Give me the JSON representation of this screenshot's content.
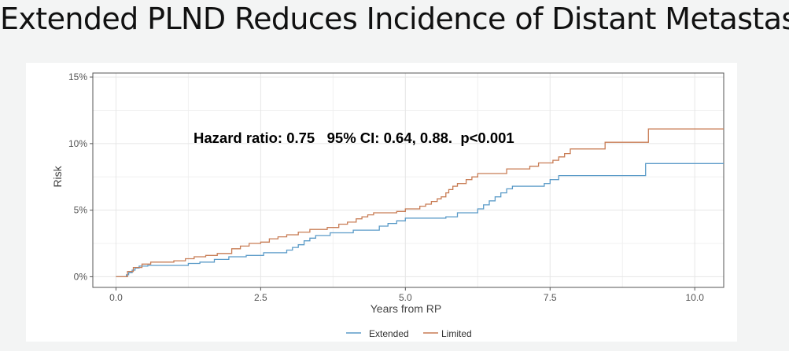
{
  "slide": {
    "title": "Extended PLND Reduces Incidence of Distant Metastasis"
  },
  "chart_data": {
    "type": "line",
    "step": true,
    "xlabel": "Years from RP",
    "ylabel": "Risk",
    "xlim": [
      -0.4,
      10.5
    ],
    "ylim": [
      -0.8,
      15.3
    ],
    "x_ticks": [
      0,
      2.5,
      5,
      7.5,
      10
    ],
    "x_tick_labels": [
      "0.0",
      "2.5",
      "5.0",
      "7.5",
      "10.0"
    ],
    "y_ticks": [
      0,
      5,
      10,
      15
    ],
    "y_tick_labels": [
      "0%",
      "5%",
      "10%",
      "15%"
    ],
    "grid": true,
    "legend_position": "bottom",
    "annotation": "Hazard ratio: 0.75   95% CI: 0.64, 0.88.  p<0.001",
    "series": [
      {
        "name": "Extended",
        "color": "#5b9bc8",
        "points": [
          [
            0,
            0
          ],
          [
            0.18,
            0.15
          ],
          [
            0.22,
            0.3
          ],
          [
            0.28,
            0.5
          ],
          [
            0.33,
            0.65
          ],
          [
            0.4,
            0.8
          ],
          [
            0.55,
            0.85
          ],
          [
            1.25,
            1.0
          ],
          [
            1.45,
            1.1
          ],
          [
            1.7,
            1.3
          ],
          [
            1.95,
            1.5
          ],
          [
            2.25,
            1.6
          ],
          [
            2.55,
            1.8
          ],
          [
            2.95,
            2.0
          ],
          [
            3.05,
            2.2
          ],
          [
            3.15,
            2.4
          ],
          [
            3.25,
            2.7
          ],
          [
            3.35,
            2.9
          ],
          [
            3.45,
            3.1
          ],
          [
            3.7,
            3.3
          ],
          [
            4.1,
            3.5
          ],
          [
            4.55,
            3.8
          ],
          [
            4.7,
            4.0
          ],
          [
            4.85,
            4.2
          ],
          [
            5.0,
            4.4
          ],
          [
            5.7,
            4.5
          ],
          [
            5.9,
            4.8
          ],
          [
            6.25,
            5.1
          ],
          [
            6.35,
            5.4
          ],
          [
            6.45,
            5.7
          ],
          [
            6.55,
            6.0
          ],
          [
            6.65,
            6.3
          ],
          [
            6.75,
            6.6
          ],
          [
            6.85,
            6.8
          ],
          [
            7.4,
            7.0
          ],
          [
            7.5,
            7.3
          ],
          [
            7.65,
            7.6
          ],
          [
            9.15,
            8.5
          ],
          [
            10.5,
            8.5
          ]
        ]
      },
      {
        "name": "Limited",
        "color": "#c87c54",
        "points": [
          [
            0,
            0
          ],
          [
            0.2,
            0.4
          ],
          [
            0.3,
            0.7
          ],
          [
            0.45,
            0.95
          ],
          [
            0.6,
            1.1
          ],
          [
            1.0,
            1.2
          ],
          [
            1.2,
            1.35
          ],
          [
            1.35,
            1.5
          ],
          [
            1.55,
            1.6
          ],
          [
            1.75,
            1.75
          ],
          [
            2.0,
            2.1
          ],
          [
            2.15,
            2.3
          ],
          [
            2.3,
            2.5
          ],
          [
            2.5,
            2.6
          ],
          [
            2.65,
            2.85
          ],
          [
            2.8,
            3.0
          ],
          [
            2.95,
            3.15
          ],
          [
            3.15,
            3.35
          ],
          [
            3.35,
            3.55
          ],
          [
            3.65,
            3.7
          ],
          [
            3.85,
            3.95
          ],
          [
            4.0,
            4.1
          ],
          [
            4.15,
            4.35
          ],
          [
            4.25,
            4.5
          ],
          [
            4.35,
            4.65
          ],
          [
            4.45,
            4.8
          ],
          [
            4.85,
            4.9
          ],
          [
            5.0,
            5.1
          ],
          [
            5.25,
            5.3
          ],
          [
            5.35,
            5.45
          ],
          [
            5.45,
            5.65
          ],
          [
            5.55,
            5.85
          ],
          [
            5.62,
            6.0
          ],
          [
            5.7,
            6.3
          ],
          [
            5.75,
            6.55
          ],
          [
            5.82,
            6.8
          ],
          [
            5.9,
            7.0
          ],
          [
            6.05,
            7.3
          ],
          [
            6.15,
            7.5
          ],
          [
            6.25,
            7.75
          ],
          [
            6.75,
            8.1
          ],
          [
            7.15,
            8.3
          ],
          [
            7.3,
            8.55
          ],
          [
            7.55,
            8.75
          ],
          [
            7.65,
            9.0
          ],
          [
            7.75,
            9.25
          ],
          [
            7.85,
            9.6
          ],
          [
            8.45,
            10.1
          ],
          [
            9.2,
            11.1
          ],
          [
            10.5,
            11.1
          ]
        ]
      }
    ]
  }
}
